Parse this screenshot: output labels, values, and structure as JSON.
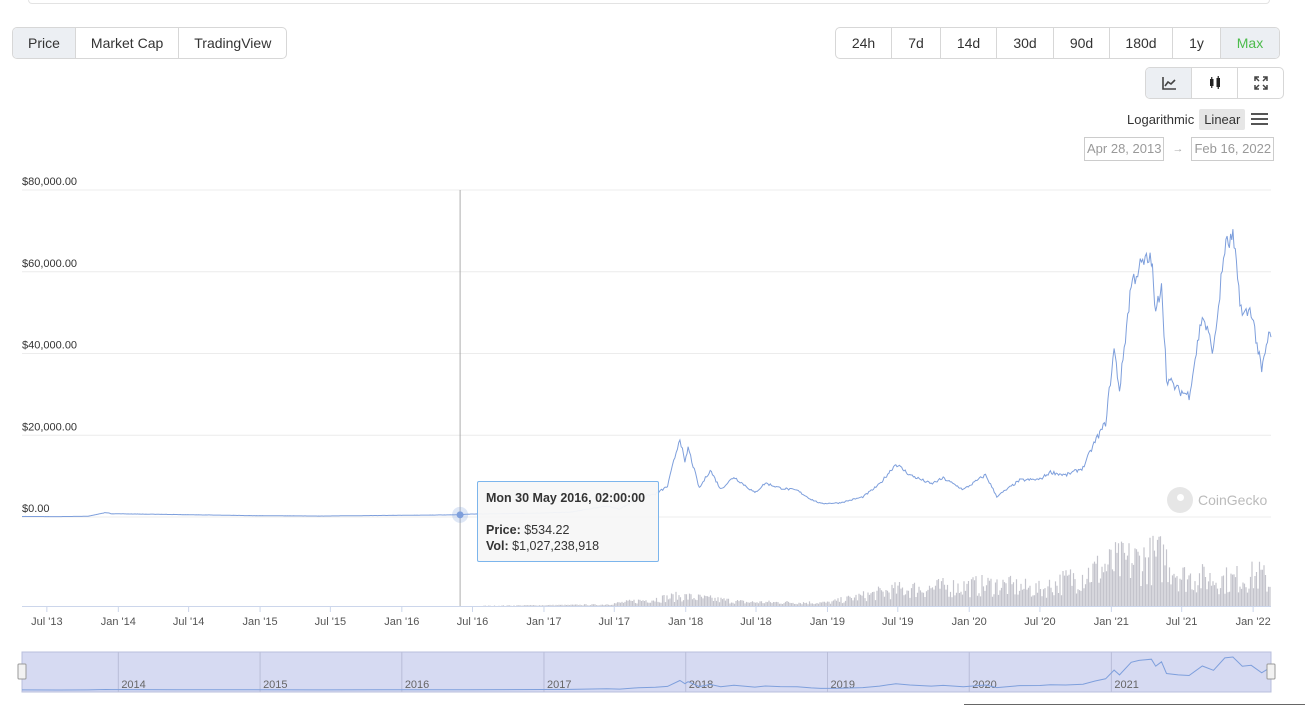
{
  "tabs": [
    {
      "label": "Price",
      "active": true
    },
    {
      "label": "Market Cap",
      "active": false
    },
    {
      "label": "TradingView",
      "active": false
    }
  ],
  "ranges": [
    {
      "label": "24h",
      "active": false
    },
    {
      "label": "7d",
      "active": false
    },
    {
      "label": "14d",
      "active": false
    },
    {
      "label": "30d",
      "active": false
    },
    {
      "label": "90d",
      "active": false
    },
    {
      "label": "180d",
      "active": false
    },
    {
      "label": "1y",
      "active": false
    },
    {
      "label": "Max",
      "active": true
    }
  ],
  "chart_modes": [
    {
      "icon": "line-chart-icon",
      "active": true
    },
    {
      "icon": "candlestick-icon",
      "active": false
    },
    {
      "icon": "fullscreen-icon",
      "active": false
    }
  ],
  "scale": {
    "logarithmic": "Logarithmic",
    "linear": "Linear",
    "selected": "Linear"
  },
  "date_range": {
    "from": "Apr 28, 2013",
    "arrow": "→",
    "to": "Feb 16, 2022"
  },
  "tooltip": {
    "title": "Mon 30 May 2016, 02:00:00",
    "price_label": "Price:",
    "price_value": "$534.22",
    "vol_label": "Vol:",
    "vol_value": "$1,027,238,918"
  },
  "watermark": "CoinGecko",
  "colors": {
    "line": "#7e9fdc",
    "volume": "#c4c4cc",
    "navigator_fill": "#d6daf2",
    "range_active": "#4cbc4c"
  },
  "chart_data": {
    "type": "line",
    "ylabel_ticks": [
      "$0.00",
      "$20,000.00",
      "$40,000.00",
      "$60,000.00",
      "$80,000.00"
    ],
    "ylim": [
      0,
      80000
    ],
    "xlim": [
      "2013-04-28",
      "2022-02-16"
    ],
    "x_ticks": [
      {
        "label": "Jul '13",
        "date": "2013-07-01"
      },
      {
        "label": "Jan '14",
        "date": "2014-01-01"
      },
      {
        "label": "Jul '14",
        "date": "2014-07-01"
      },
      {
        "label": "Jan '15",
        "date": "2015-01-01"
      },
      {
        "label": "Jul '15",
        "date": "2015-07-01"
      },
      {
        "label": "Jan '16",
        "date": "2016-01-01"
      },
      {
        "label": "Jul '16",
        "date": "2016-07-01"
      },
      {
        "label": "Jan '17",
        "date": "2017-01-01"
      },
      {
        "label": "Jul '17",
        "date": "2017-07-01"
      },
      {
        "label": "Jan '18",
        "date": "2018-01-01"
      },
      {
        "label": "Jul '18",
        "date": "2018-07-01"
      },
      {
        "label": "Jan '19",
        "date": "2019-01-01"
      },
      {
        "label": "Jul '19",
        "date": "2019-07-01"
      },
      {
        "label": "Jan '20",
        "date": "2020-01-01"
      },
      {
        "label": "Jul '20",
        "date": "2020-07-01"
      },
      {
        "label": "Jan '21",
        "date": "2021-01-01"
      },
      {
        "label": "Jul '21",
        "date": "2021-07-01"
      },
      {
        "label": "Jan '22",
        "date": "2022-01-01"
      }
    ],
    "navigator_labels": [
      {
        "label": "2014",
        "date": "2014-01-01"
      },
      {
        "label": "2015",
        "date": "2015-01-01"
      },
      {
        "label": "2016",
        "date": "2016-01-01"
      },
      {
        "label": "2017",
        "date": "2017-01-01"
      },
      {
        "label": "2018",
        "date": "2018-01-01"
      },
      {
        "label": "2019",
        "date": "2019-01-01"
      },
      {
        "label": "2020",
        "date": "2020-01-01"
      },
      {
        "label": "2021",
        "date": "2021-01-01"
      }
    ],
    "grid": true,
    "highlight": {
      "date": "2016-05-30",
      "price": 534.22
    },
    "price": [
      [
        "2013-04-28",
        135
      ],
      [
        "2013-08-01",
        100
      ],
      [
        "2013-10-15",
        180
      ],
      [
        "2013-11-30",
        1100
      ],
      [
        "2013-12-15",
        800
      ],
      [
        "2014-02-01",
        750
      ],
      [
        "2014-06-01",
        600
      ],
      [
        "2014-12-01",
        350
      ],
      [
        "2015-06-01",
        230
      ],
      [
        "2015-11-15",
        380
      ],
      [
        "2016-05-30",
        534
      ],
      [
        "2016-06-20",
        700
      ],
      [
        "2016-12-31",
        960
      ],
      [
        "2017-03-10",
        1200
      ],
      [
        "2017-06-12",
        2700
      ],
      [
        "2017-07-15",
        1900
      ],
      [
        "2017-09-01",
        4800
      ],
      [
        "2017-10-15",
        5600
      ],
      [
        "2017-11-15",
        7500
      ],
      [
        "2017-12-17",
        19500
      ],
      [
        "2017-12-30",
        13000
      ],
      [
        "2018-01-07",
        17000
      ],
      [
        "2018-02-05",
        7000
      ],
      [
        "2018-03-05",
        11500
      ],
      [
        "2018-04-01",
        6800
      ],
      [
        "2018-05-05",
        9800
      ],
      [
        "2018-06-28",
        5900
      ],
      [
        "2018-07-25",
        8300
      ],
      [
        "2018-09-01",
        7100
      ],
      [
        "2018-10-15",
        6500
      ],
      [
        "2018-11-20",
        4300
      ],
      [
        "2018-12-15",
        3300
      ],
      [
        "2019-02-01",
        3450
      ],
      [
        "2019-04-02",
        4900
      ],
      [
        "2019-05-15",
        8000
      ],
      [
        "2019-06-26",
        13000
      ],
      [
        "2019-08-01",
        10300
      ],
      [
        "2019-09-25",
        8100
      ],
      [
        "2019-10-26",
        9500
      ],
      [
        "2019-12-17",
        6700
      ],
      [
        "2020-02-12",
        10300
      ],
      [
        "2020-03-12",
        5000
      ],
      [
        "2020-05-10",
        9000
      ],
      [
        "2020-07-01",
        9200
      ],
      [
        "2020-07-28",
        11000
      ],
      [
        "2020-09-05",
        10200
      ],
      [
        "2020-10-20",
        12000
      ],
      [
        "2020-11-20",
        18500
      ],
      [
        "2020-12-17",
        23000
      ],
      [
        "2021-01-08",
        41000
      ],
      [
        "2021-01-22",
        31000
      ],
      [
        "2021-02-21",
        57000
      ],
      [
        "2021-03-13",
        61000
      ],
      [
        "2021-04-14",
        63500
      ],
      [
        "2021-04-25",
        49000
      ],
      [
        "2021-05-10",
        58000
      ],
      [
        "2021-05-23",
        34000
      ],
      [
        "2021-06-22",
        31000
      ],
      [
        "2021-07-20",
        29800
      ],
      [
        "2021-08-23",
        49500
      ],
      [
        "2021-09-21",
        40500
      ],
      [
        "2021-10-20",
        66000
      ],
      [
        "2021-11-10",
        68000
      ],
      [
        "2021-12-04",
        49000
      ],
      [
        "2021-12-27",
        50800
      ],
      [
        "2022-01-23",
        35500
      ],
      [
        "2022-02-10",
        44500
      ],
      [
        "2022-02-16",
        44000
      ]
    ],
    "volume": [
      [
        "2013-04-28",
        0.0
      ],
      [
        "2016-06-01",
        0.02
      ],
      [
        "2017-06-01",
        0.4
      ],
      [
        "2017-12-20",
        3.0
      ],
      [
        "2018-06-01",
        1.2
      ],
      [
        "2019-01-01",
        1.0
      ],
      [
        "2019-05-15",
        4.0
      ],
      [
        "2019-07-01",
        5.0
      ],
      [
        "2020-03-12",
        6.5
      ],
      [
        "2020-07-01",
        5.0
      ],
      [
        "2021-01-10",
        13.0
      ],
      [
        "2021-05-19",
        15.0
      ],
      [
        "2021-07-01",
        9.0
      ],
      [
        "2021-11-01",
        8.0
      ],
      [
        "2022-01-22",
        9.5
      ],
      [
        "2022-02-16",
        6.0
      ]
    ],
    "volume_unit": "relative"
  }
}
